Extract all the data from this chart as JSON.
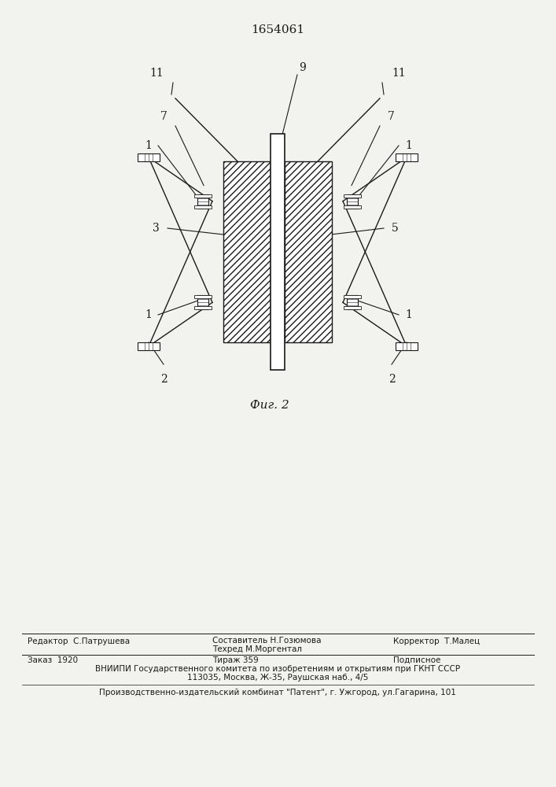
{
  "title": "1654061",
  "fig_label": "Фиг. 2",
  "background_color": "#f2f2ee",
  "line_color": "#1a1a1a",
  "footer_line1_col1": "Редактор  С.Патрушева",
  "footer_line1_col2": "Составитель Н.Гозюмова",
  "footer_line1_col3": "Корректор  Т.Малец",
  "footer_line2_col2": "Техред М.Моргентал",
  "footer_zakas": "Заказ  1920",
  "footer_tiraj": "Тираж 359",
  "footer_podpisnoe": "Подписное",
  "footer_vniiipi": "ВНИИПИ Государственного комитета по изобретениям и открытиям при ГКНТ СССР",
  "footer_address": "113035, Москва, Ж-35, Раушская наб., 4/5",
  "footer_patent": "Производственно-издательский комбинат \"Патент\", г. Ужгород, ул.Гагарина, 101"
}
